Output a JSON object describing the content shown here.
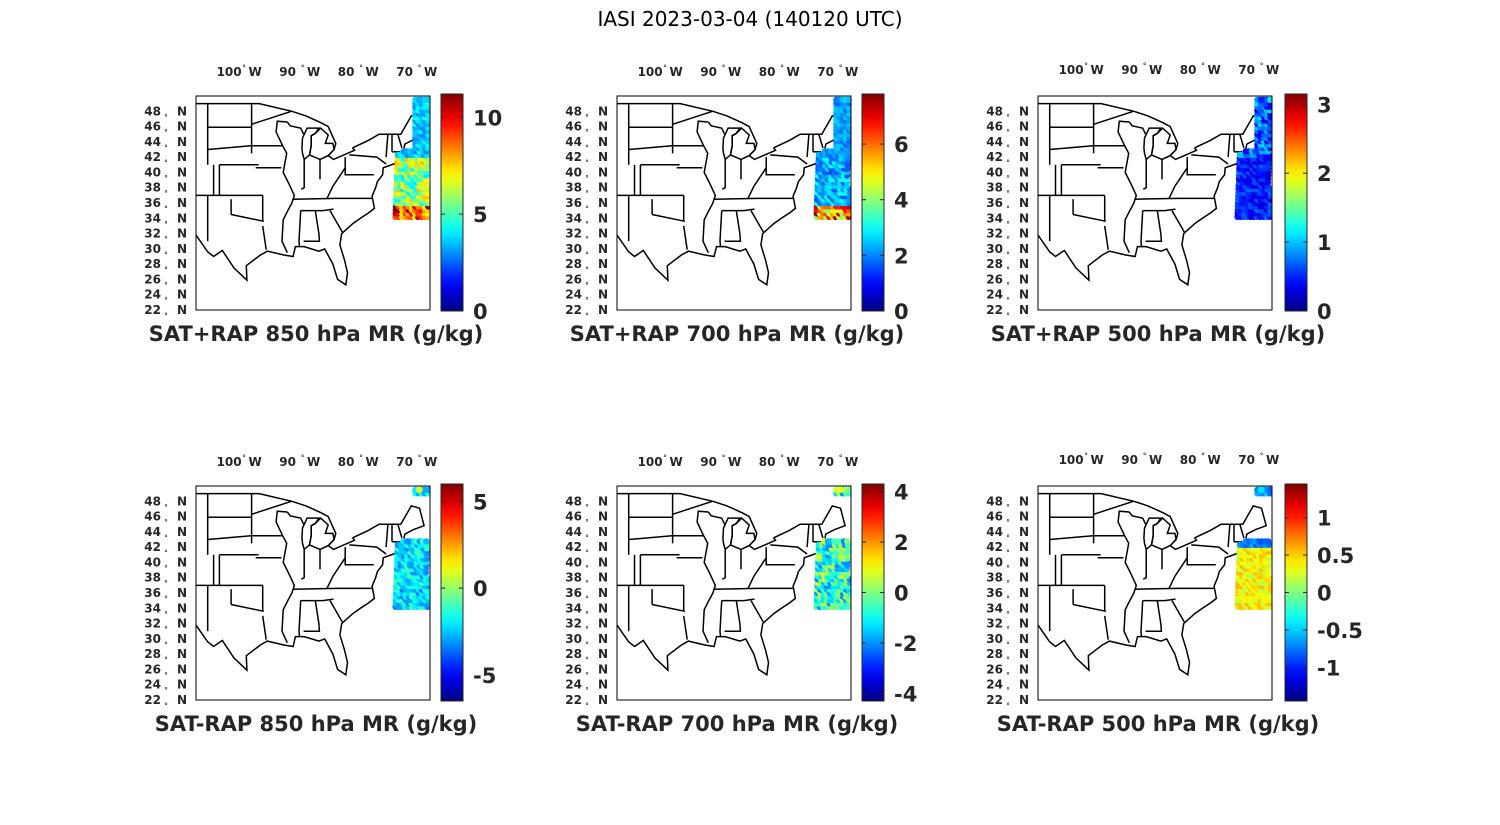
{
  "figure": {
    "title": "IASI 2023-03-04 (140120 UTC)"
  },
  "map": {
    "lon_ticks": [
      {
        "value": -100,
        "label": "100",
        "hemi": "W"
      },
      {
        "value": -90,
        "label": "90",
        "hemi": "W"
      },
      {
        "value": -80,
        "label": "80",
        "hemi": "W"
      },
      {
        "value": -70,
        "label": "70",
        "hemi": "W"
      }
    ],
    "lat_ticks": [
      {
        "value": 48,
        "label": "48",
        "hemi": "N"
      },
      {
        "value": 46,
        "label": "46",
        "hemi": "N"
      },
      {
        "value": 44,
        "label": "44",
        "hemi": "N"
      },
      {
        "value": 42,
        "label": "42",
        "hemi": "N"
      },
      {
        "value": 40,
        "label": "40",
        "hemi": "N"
      },
      {
        "value": 38,
        "label": "38",
        "hemi": "N"
      },
      {
        "value": 36,
        "label": "36",
        "hemi": "N"
      },
      {
        "value": 34,
        "label": "34",
        "hemi": "N"
      },
      {
        "value": 32,
        "label": "32",
        "hemi": "N"
      },
      {
        "value": 30,
        "label": "30",
        "hemi": "N"
      },
      {
        "value": 28,
        "label": "28",
        "hemi": "N"
      },
      {
        "value": 26,
        "label": "26",
        "hemi": "N"
      },
      {
        "value": 24,
        "label": "24",
        "hemi": "N"
      },
      {
        "value": 22,
        "label": "22",
        "hemi": "N"
      }
    ],
    "colormap": "jet"
  },
  "panels": [
    {
      "title": "SAT+RAP 850 hPa MR (g/kg)",
      "clim": [
        0,
        11.2
      ],
      "cticks": [
        {
          "v": 0,
          "t": "0"
        },
        {
          "v": 5,
          "t": "5"
        },
        {
          "v": 10,
          "t": "10"
        }
      ]
    },
    {
      "title": "SAT+RAP 700 hPa MR (g/kg)",
      "clim": [
        0,
        7.8
      ],
      "cticks": [
        {
          "v": 0,
          "t": "0"
        },
        {
          "v": 2,
          "t": "2"
        },
        {
          "v": 4,
          "t": "4"
        },
        {
          "v": 6,
          "t": "6"
        }
      ]
    },
    {
      "title": "SAT+RAP 500 hPa MR (g/kg)",
      "clim": [
        0,
        3.15
      ],
      "cticks": [
        {
          "v": 0,
          "t": "0"
        },
        {
          "v": 1,
          "t": "1"
        },
        {
          "v": 2,
          "t": "2"
        },
        {
          "v": 3,
          "t": "3"
        }
      ]
    },
    {
      "title": "SAT-RAP 850 hPa MR (g/kg)",
      "clim": [
        -6.5,
        6
      ],
      "cticks": [
        {
          "v": -5,
          "t": "-5"
        },
        {
          "v": 0,
          "t": "0"
        },
        {
          "v": 5,
          "t": "5"
        }
      ]
    },
    {
      "title": "SAT-RAP 700 hPa MR (g/kg)",
      "clim": [
        -4.3,
        4.3
      ],
      "cticks": [
        {
          "v": -4,
          "t": "-4"
        },
        {
          "v": -2,
          "t": "-2"
        },
        {
          "v": 0,
          "t": "0"
        },
        {
          "v": 2,
          "t": "2"
        },
        {
          "v": 4,
          "t": "4"
        }
      ]
    },
    {
      "title": "SAT-RAP 500 hPa MR (g/kg)",
      "clim": [
        -1.45,
        1.45
      ],
      "cticks": [
        {
          "v": -1,
          "t": "-1"
        },
        {
          "v": -0.5,
          "t": "-0.5"
        },
        {
          "v": 0,
          "t": "0"
        },
        {
          "v": 0.5,
          "t": "0.5"
        },
        {
          "v": 1,
          "t": "1"
        }
      ]
    }
  ]
}
